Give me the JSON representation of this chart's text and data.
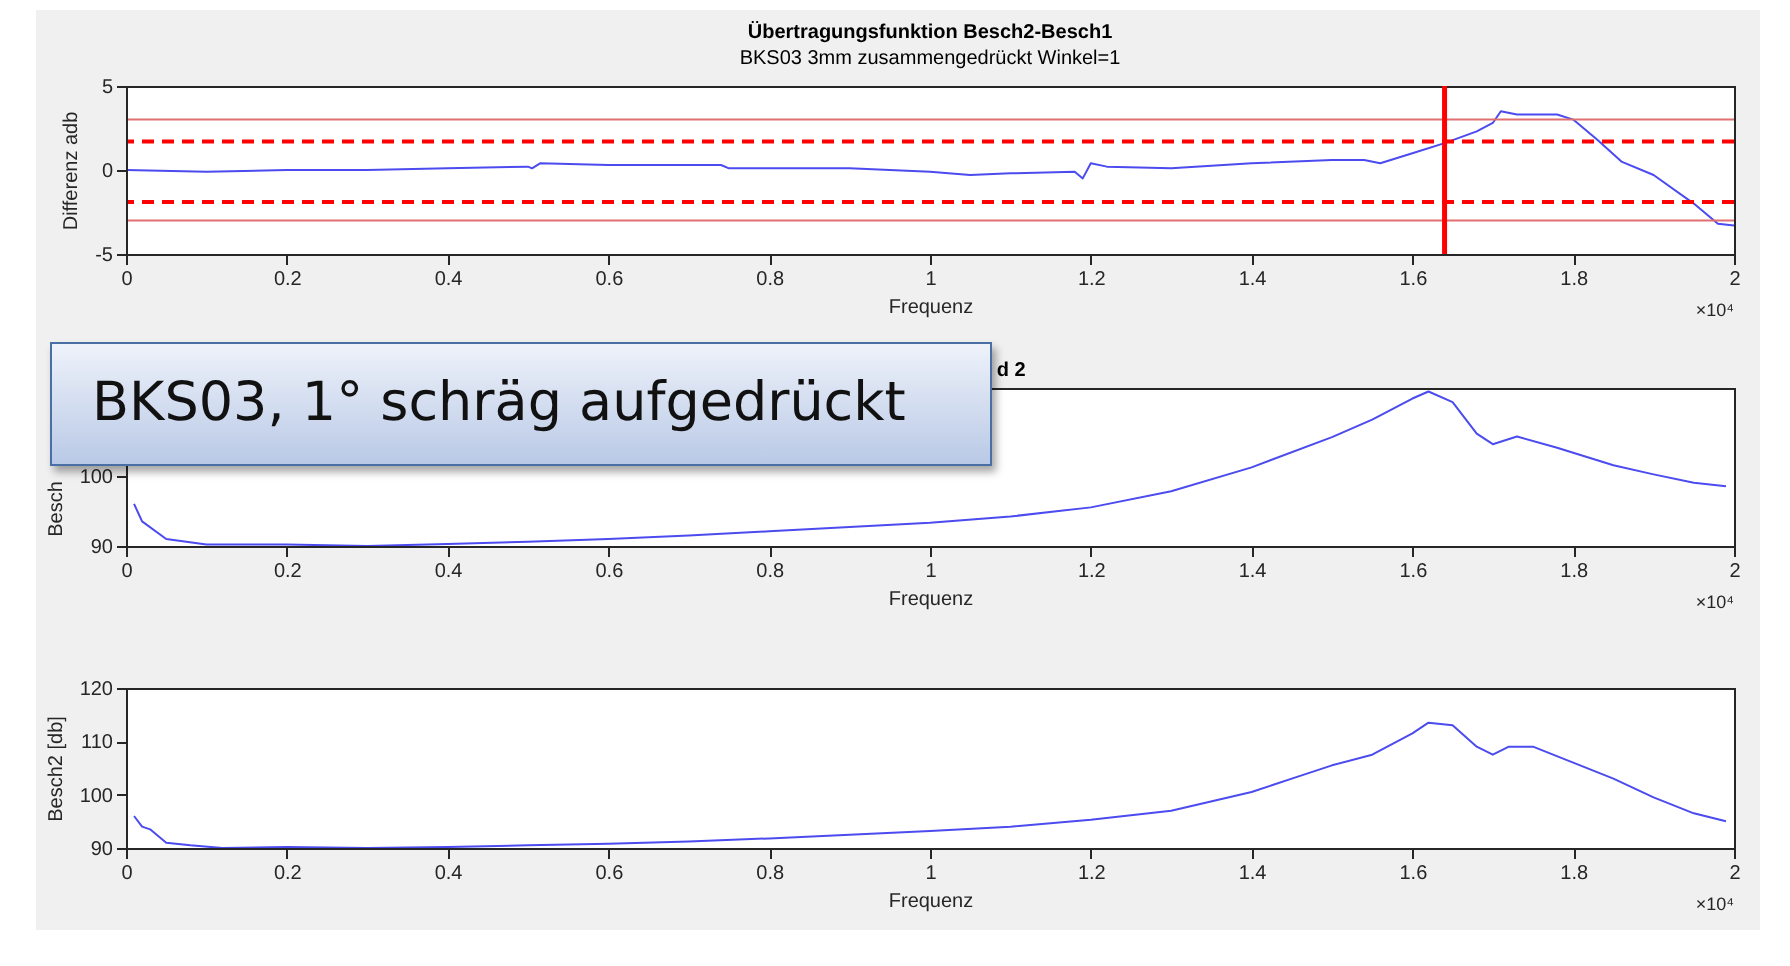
{
  "chart_data": [
    {
      "type": "line",
      "title": "Übertragungsfunktion Besch2-Besch1",
      "subtitle": "BKS03 3mm zusammengedrückt Winkel=1",
      "xlabel": "Frequenz",
      "ylabel": "Differenz adb",
      "annotations": [
        "×10⁴"
      ],
      "x": [
        0,
        0.1,
        0.2,
        0.3,
        0.4,
        0.5,
        0.505,
        0.515,
        0.6,
        0.7,
        0.74,
        0.75,
        0.8,
        0.9,
        1.0,
        1.05,
        1.1,
        1.18,
        1.19,
        1.2,
        1.22,
        1.3,
        1.4,
        1.5,
        1.54,
        1.56,
        1.6,
        1.64,
        1.68,
        1.7,
        1.71,
        1.73,
        1.78,
        1.8,
        1.83,
        1.86,
        1.9,
        1.95,
        1.98,
        2.0
      ],
      "series": [
        {
          "color": "#4b4bef",
          "values": [
            0,
            -0.1,
            0,
            0,
            0.1,
            0.2,
            0.1,
            0.4,
            0.3,
            0.3,
            0.3,
            0.1,
            0.1,
            0.1,
            -0.1,
            -0.3,
            -0.2,
            -0.1,
            -0.5,
            0.4,
            0.2,
            0.1,
            0.4,
            0.6,
            0.6,
            0.4,
            1.0,
            1.6,
            2.3,
            2.8,
            3.5,
            3.3,
            3.3,
            3.0,
            1.8,
            0.5,
            -0.3,
            -2.0,
            -3.2,
            -3.3
          ]
        }
      ],
      "xlim": [
        0,
        2
      ],
      "xticks": [
        0,
        0.2,
        0.4,
        0.6,
        0.8,
        1,
        1.2,
        1.4,
        1.6,
        1.8,
        2
      ],
      "ylim": [
        -5,
        5
      ],
      "yticks": [
        -5,
        0,
        5
      ],
      "ref_lines": [
        {
          "axis": "y",
          "value": 3,
          "color": "#e07070",
          "line_style": "solid"
        },
        {
          "axis": "y",
          "value": -3,
          "color": "#e07070",
          "line_style": "solid"
        },
        {
          "axis": "y",
          "value": 1.7,
          "color": "#ff0000",
          "line_style": "dashed"
        },
        {
          "axis": "y",
          "value": -1.9,
          "color": "#ff0000",
          "line_style": "dashed"
        },
        {
          "axis": "x",
          "value": 1.64,
          "color": "#ff0000",
          "line_style": "solid"
        }
      ]
    },
    {
      "type": "line",
      "title": "d 2",
      "xlabel": "Frequenz",
      "ylabel": "Besch",
      "annotations": [
        "×10⁴",
        "BKS03, 1° schräg aufgedrückt"
      ],
      "x": [
        0.01,
        0.02,
        0.05,
        0.1,
        0.2,
        0.3,
        0.4,
        0.5,
        0.6,
        0.7,
        0.8,
        0.9,
        1.0,
        1.1,
        1.2,
        1.3,
        1.4,
        1.5,
        1.55,
        1.6,
        1.62,
        1.65,
        1.68,
        1.7,
        1.73,
        1.78,
        1.85,
        1.9,
        1.95,
        1.99
      ],
      "series": [
        {
          "color": "#4b4bef",
          "values": [
            96,
            93.5,
            91,
            90.2,
            90.2,
            90,
            90.3,
            90.6,
            91,
            91.5,
            92.1,
            92.7,
            93.3,
            94.2,
            95.5,
            97.8,
            101.2,
            105.5,
            108,
            111,
            112,
            110.5,
            106,
            104.5,
            105.6,
            104,
            101.5,
            100.2,
            99,
            98.5
          ]
        }
      ],
      "xlim": [
        0,
        2
      ],
      "xticks": [
        0,
        0.2,
        0.4,
        0.6,
        0.8,
        1,
        1.2,
        1.4,
        1.6,
        1.8,
        2
      ],
      "ylim": [
        90,
        112.5
      ],
      "yticks": [
        90,
        100
      ]
    },
    {
      "type": "line",
      "xlabel": "Frequenz",
      "ylabel": "Besch2 [db]",
      "annotations": [
        "×10⁴"
      ],
      "x": [
        0.01,
        0.02,
        0.03,
        0.05,
        0.08,
        0.12,
        0.2,
        0.3,
        0.4,
        0.5,
        0.6,
        0.7,
        0.8,
        0.9,
        1.0,
        1.1,
        1.2,
        1.3,
        1.4,
        1.45,
        1.5,
        1.55,
        1.6,
        1.62,
        1.65,
        1.68,
        1.7,
        1.72,
        1.75,
        1.8,
        1.85,
        1.9,
        1.95,
        1.99
      ],
      "series": [
        {
          "color": "#4b4bef",
          "values": [
            96,
            94,
            93.5,
            91,
            90.5,
            90,
            90.2,
            90,
            90.2,
            90.5,
            90.8,
            91.2,
            91.8,
            92.5,
            93.2,
            94,
            95.3,
            97,
            100.5,
            103,
            105.5,
            107.5,
            111.5,
            113.5,
            113,
            109,
            107.5,
            109,
            109,
            106,
            103,
            99.5,
            96.5,
            95
          ]
        }
      ],
      "xlim": [
        0,
        2
      ],
      "xticks": [
        0,
        0.2,
        0.4,
        0.6,
        0.8,
        1,
        1.2,
        1.4,
        1.6,
        1.8,
        2
      ],
      "ylim": [
        90,
        120
      ],
      "yticks": [
        90,
        100,
        110,
        120
      ]
    }
  ]
}
